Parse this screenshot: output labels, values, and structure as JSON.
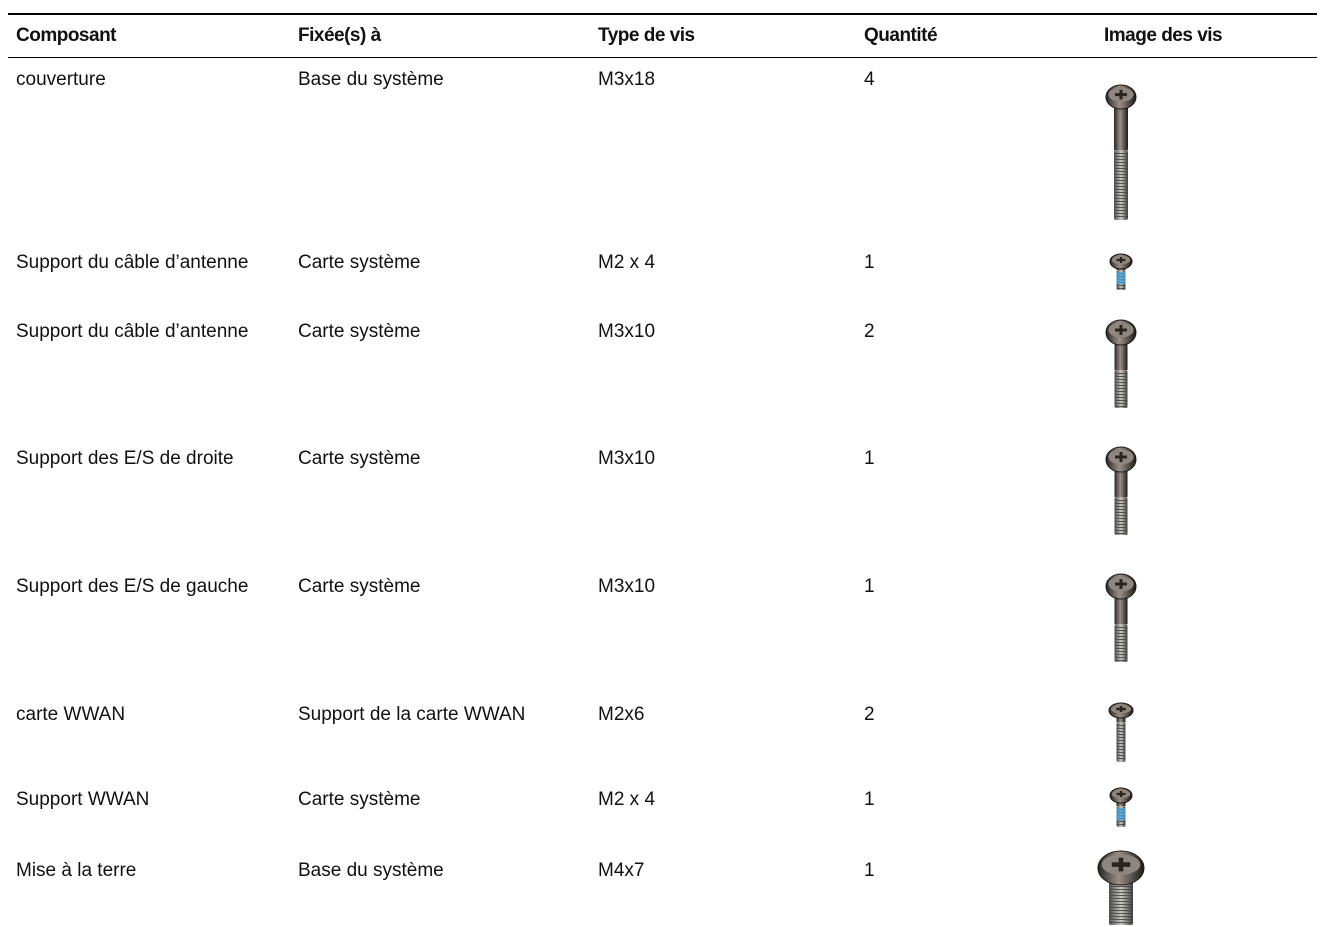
{
  "table": {
    "header": [
      "Composant",
      "Fixée(s) à",
      "Type de vis",
      "Quantité",
      "Image des vis"
    ],
    "rows": [
      [
        "couverture",
        "Base du système",
        "M3x18",
        4
      ],
      [
        "Support du câble d’antenne",
        "Carte système",
        "M2 x 4",
        1
      ],
      [
        "Support du câble d’antenne",
        "Carte système",
        "M3x10",
        2
      ],
      [
        "Support des E/S de droite",
        "Carte système",
        "M3x10",
        1
      ],
      [
        "Support des E/S de gauche",
        "Carte système",
        "M3x10",
        1
      ],
      [
        "carte WWAN",
        "Support de la carte WWAN",
        "M2x6",
        2
      ],
      [
        "Support WWAN",
        "Carte système",
        "M2 x 4",
        1
      ],
      [
        "Mise à la terre",
        "Base du système",
        "M4x7",
        1
      ]
    ]
  }
}
